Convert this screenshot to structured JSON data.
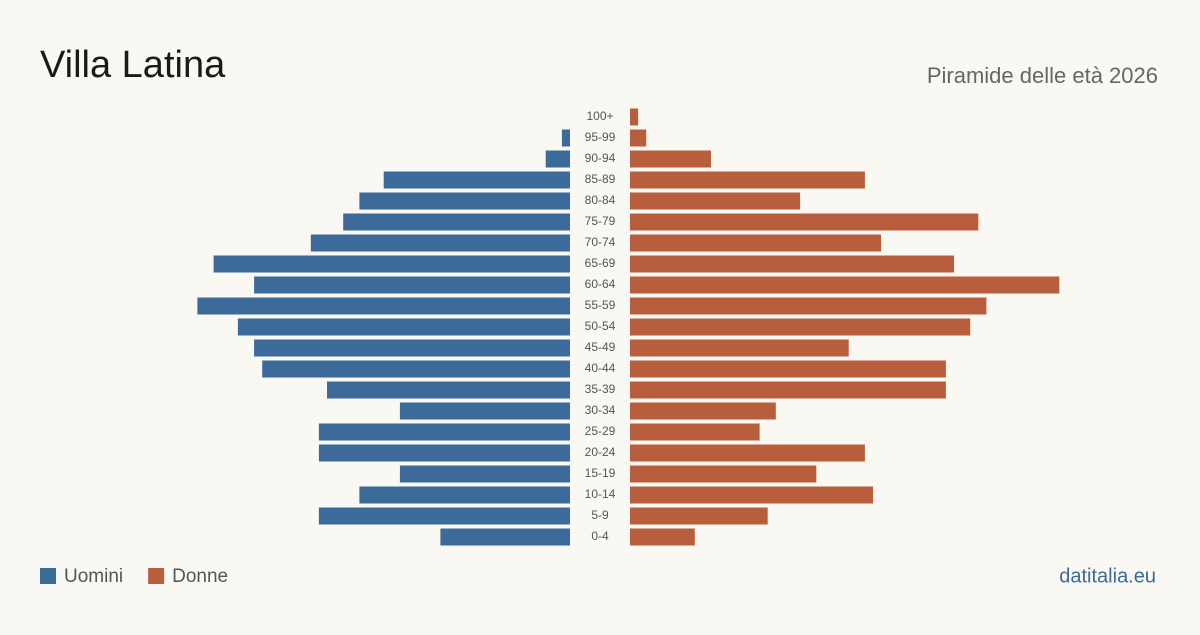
{
  "chart_data": {
    "type": "pyramid",
    "title": "Villa Latina",
    "subtitle": "Piramide delle età 2026",
    "source": "datitalia.eu",
    "categories": [
      "100+",
      "95-99",
      "90-94",
      "85-89",
      "80-84",
      "75-79",
      "70-74",
      "65-69",
      "60-64",
      "55-59",
      "50-54",
      "45-49",
      "40-44",
      "35-39",
      "30-34",
      "25-29",
      "20-24",
      "15-19",
      "10-14",
      "5-9",
      "0-4"
    ],
    "series": [
      {
        "name": "Uomini",
        "color": "#3b6a9b",
        "values": [
          0,
          1,
          3,
          23,
          26,
          28,
          32,
          44,
          39,
          46,
          41,
          39,
          38,
          30,
          21,
          31,
          31,
          21,
          26,
          31,
          16
        ]
      },
      {
        "name": "Donne",
        "color": "#b95e3d",
        "values": [
          1,
          2,
          10,
          29,
          21,
          43,
          31,
          40,
          53,
          44,
          42,
          27,
          39,
          39,
          18,
          16,
          29,
          23,
          30,
          17,
          8
        ]
      }
    ]
  }
}
